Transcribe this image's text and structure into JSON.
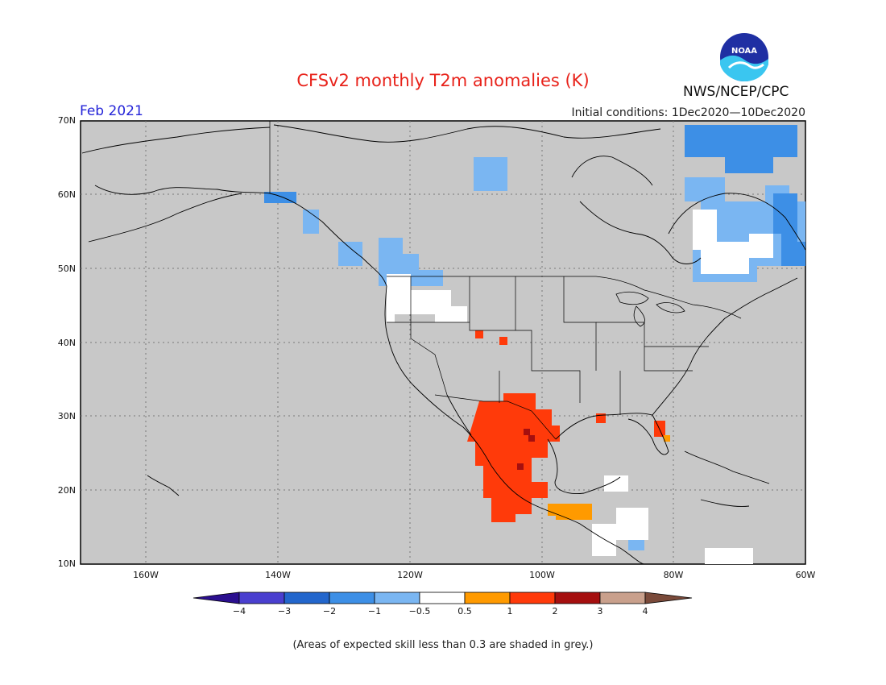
{
  "title": "CFSv2 monthly T2m anomalies (K)",
  "agency": "NWS/NCEP/CPC",
  "logo_text": "NOAA",
  "month": "Feb 2021",
  "initial_conditions": "Initial conditions: 1Dec2020—10Dec2020",
  "note": "(Areas of expected skill less than 0.3 are shaded in grey.)",
  "lat_labels": [
    "70N",
    "60N",
    "50N",
    "40N",
    "30N",
    "20N",
    "10N"
  ],
  "lon_labels": [
    "160W",
    "140W",
    "120W",
    "100W",
    "80W",
    "60W"
  ],
  "colorbar": {
    "ticks": [
      "−4",
      "−3",
      "−2",
      "−1",
      "−0.5",
      "0.5",
      "1",
      "2",
      "3",
      "4"
    ],
    "colors": [
      "#2b0f8f",
      "#4a3fcf",
      "#2366cc",
      "#3d8fe6",
      "#7ab6f2",
      "#ffffff",
      "#ff9a00",
      "#ff3a0a",
      "#a50f0f",
      "#c9a08c",
      "#7a4a3a"
    ]
  },
  "colors": {
    "skill_grey": "#c8c8c8",
    "title_red": "#e8221a",
    "month_blue": "#2424d8"
  }
}
